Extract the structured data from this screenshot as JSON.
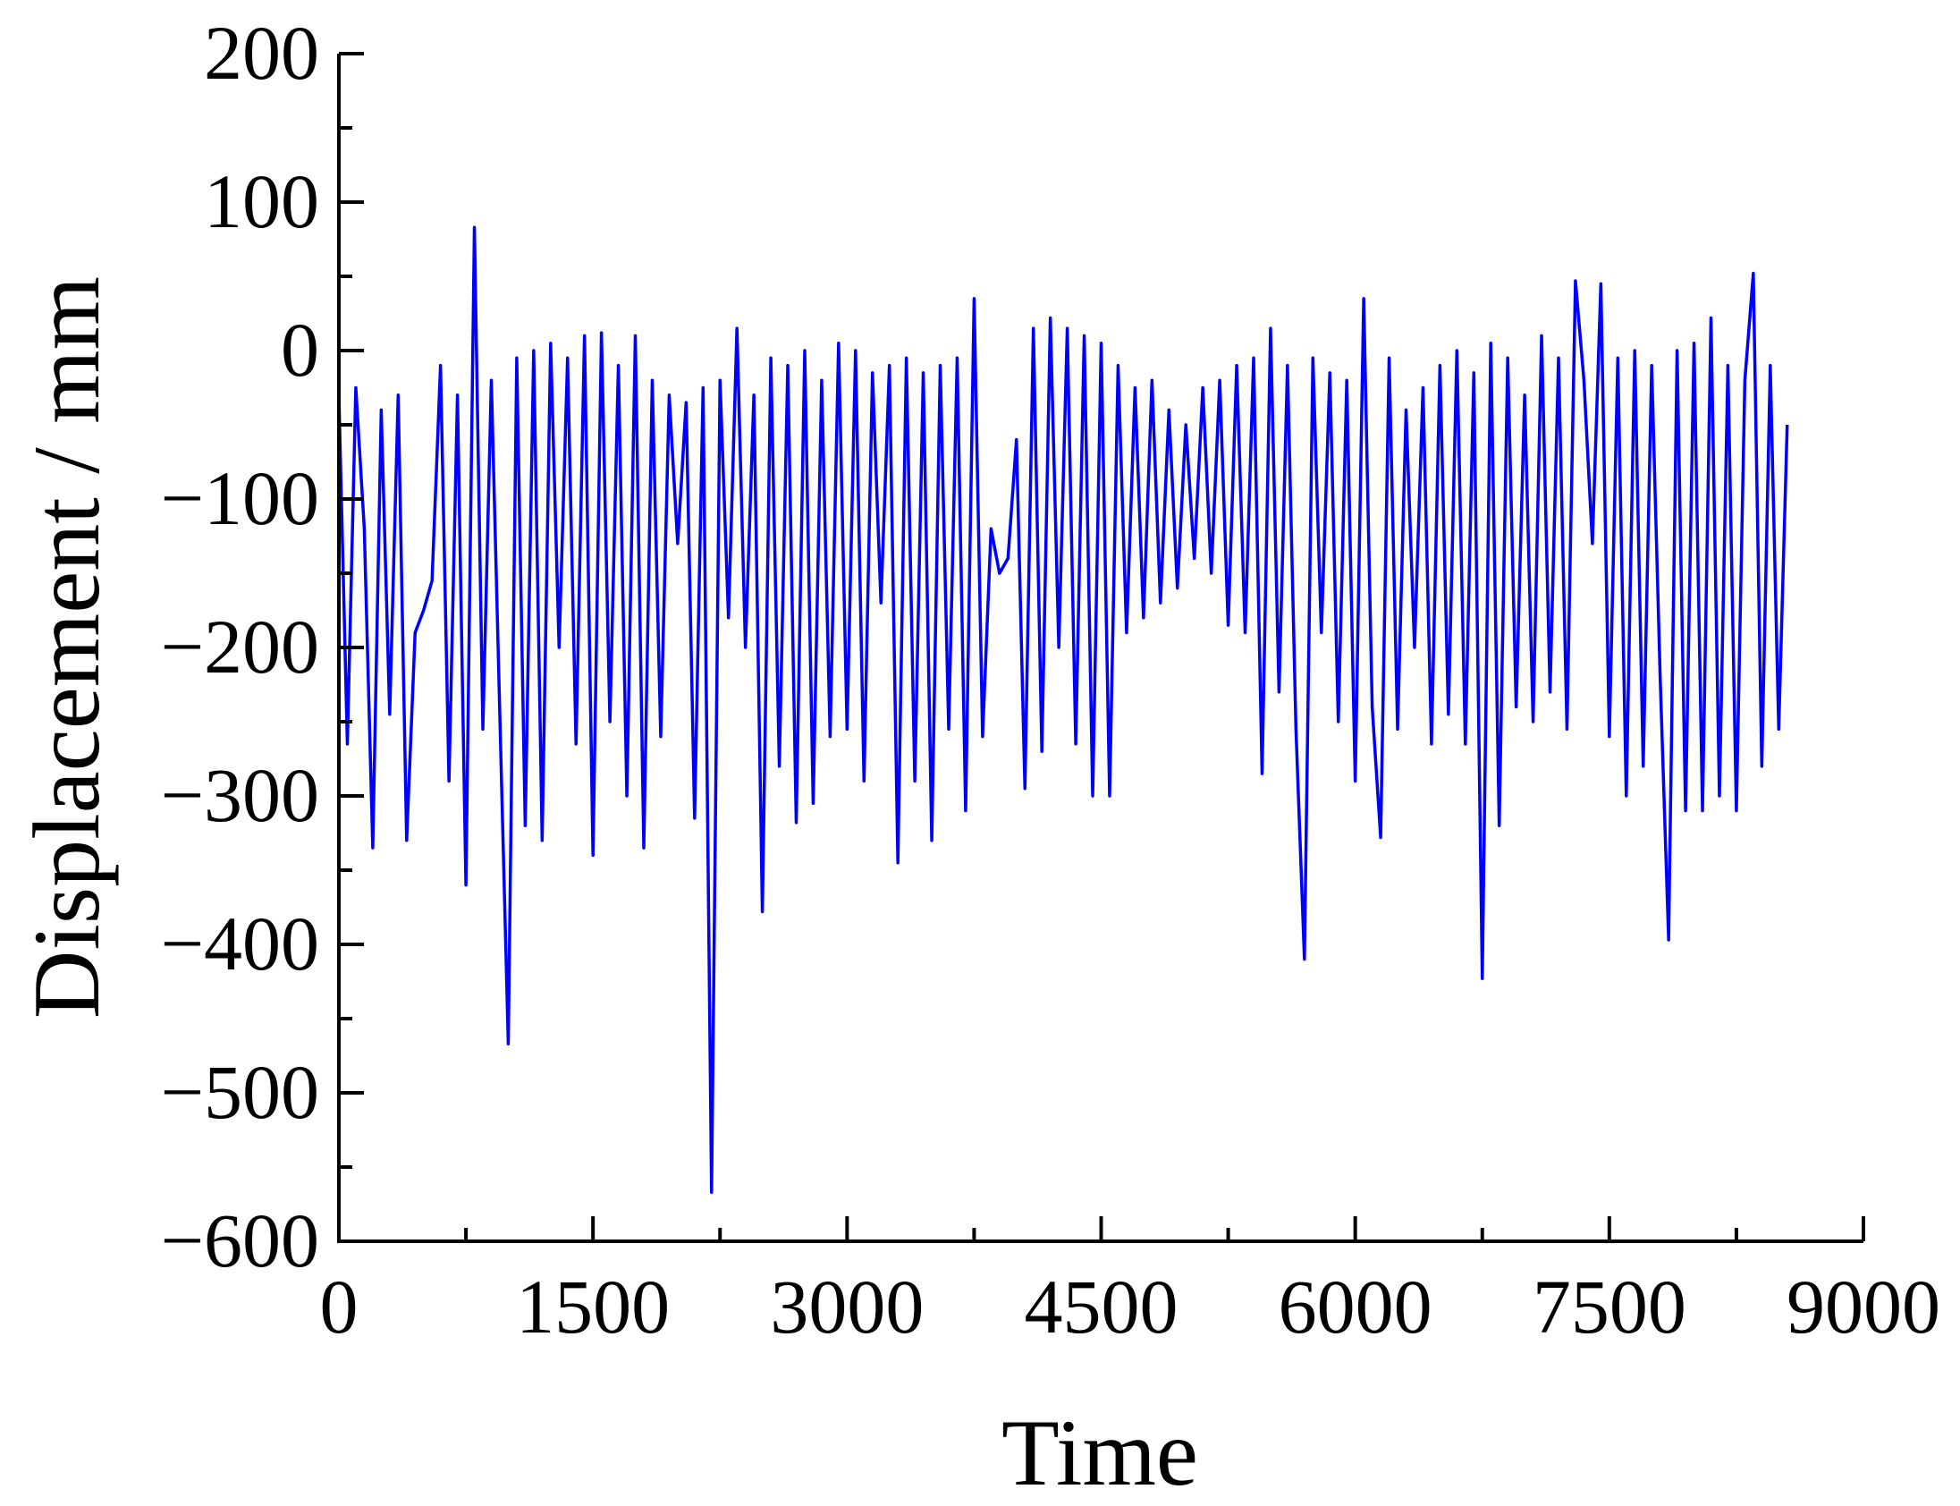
{
  "chart_data": {
    "type": "line",
    "xlabel": "Time",
    "ylabel": "Displacement / mm",
    "xlim": [
      0,
      9000
    ],
    "ylim": [
      -600,
      200
    ],
    "xticks": [
      0,
      1500,
      3000,
      4500,
      6000,
      7500,
      9000
    ],
    "yticks": [
      {
        "value": -600,
        "label": "−600"
      },
      {
        "value": -500,
        "label": "−500"
      },
      {
        "value": -400,
        "label": "−400"
      },
      {
        "value": -300,
        "label": "−300"
      },
      {
        "value": -200,
        "label": "−200"
      },
      {
        "value": -100,
        "label": "−100"
      },
      0,
      100,
      200
    ],
    "xminorticks": [
      750,
      2250,
      3750,
      5250,
      6750,
      8250
    ],
    "yminorticks": [
      -550,
      -450,
      -350,
      -250,
      -150,
      -50,
      50,
      150
    ],
    "series": [
      {
        "color": "#0000ff",
        "x": [
          0,
          50,
          100,
          150,
          200,
          250,
          300,
          350,
          400,
          450,
          500,
          550,
          600,
          650,
          700,
          750,
          800,
          850,
          900,
          950,
          1000,
          1050,
          1100,
          1150,
          1200,
          1250,
          1300,
          1350,
          1400,
          1450,
          1500,
          1550,
          1600,
          1650,
          1700,
          1750,
          1800,
          1850,
          1900,
          1950,
          2000,
          2050,
          2100,
          2150,
          2200,
          2250,
          2300,
          2350,
          2400,
          2450,
          2500,
          2550,
          2600,
          2650,
          2700,
          2750,
          2800,
          2850,
          2900,
          2950,
          3000,
          3050,
          3100,
          3150,
          3200,
          3250,
          3300,
          3350,
          3400,
          3450,
          3500,
          3550,
          3600,
          3650,
          3700,
          3750,
          3800,
          3850,
          3900,
          3950,
          4000,
          4050,
          4100,
          4150,
          4200,
          4250,
          4300,
          4350,
          4400,
          4450,
          4500,
          4550,
          4600,
          4650,
          4700,
          4750,
          4800,
          4850,
          4900,
          4950,
          5000,
          5050,
          5100,
          5150,
          5200,
          5250,
          5300,
          5350,
          5400,
          5450,
          5500,
          5550,
          5600,
          5650,
          5700,
          5750,
          5800,
          5850,
          5900,
          5950,
          6000,
          6050,
          6100,
          6150,
          6200,
          6250,
          6300,
          6350,
          6400,
          6450,
          6500,
          6550,
          6600,
          6650,
          6700,
          6750,
          6800,
          6850,
          6900,
          6950,
          7000,
          7050,
          7100,
          7150,
          7200,
          7250,
          7300,
          7350,
          7400,
          7450,
          7500,
          7550,
          7600,
          7650,
          7700,
          7750,
          7800,
          7850,
          7900,
          7950,
          8000,
          8050,
          8100,
          8150,
          8200,
          8250,
          8300,
          8350,
          8400,
          8450,
          8500,
          8550
        ],
        "values": [
          -30,
          -265,
          -25,
          -120,
          -335,
          -40,
          -245,
          -30,
          -330,
          -190,
          -175,
          -155,
          -10,
          -290,
          -30,
          -360,
          83,
          -255,
          -20,
          -245,
          -467,
          -5,
          -320,
          0,
          -330,
          5,
          -200,
          -5,
          -265,
          10,
          -340,
          12,
          -250,
          -10,
          -300,
          10,
          -335,
          -20,
          -260,
          -30,
          -130,
          -35,
          -315,
          -25,
          -567,
          -20,
          -180,
          15,
          -200,
          -30,
          -378,
          -5,
          -280,
          -10,
          -318,
          0,
          -305,
          -20,
          -260,
          5,
          -255,
          0,
          -290,
          -15,
          -170,
          -10,
          -345,
          -5,
          -290,
          -15,
          -330,
          -10,
          -255,
          -5,
          -310,
          35,
          -260,
          -120,
          -150,
          -140,
          -60,
          -295,
          15,
          -270,
          22,
          -200,
          15,
          -265,
          10,
          -300,
          5,
          -300,
          -10,
          -190,
          -25,
          -180,
          -20,
          -170,
          -40,
          -160,
          -50,
          -140,
          -25,
          -150,
          -20,
          -185,
          -10,
          -190,
          -5,
          -285,
          15,
          -230,
          -10,
          -255,
          -410,
          -5,
          -190,
          -15,
          -250,
          -20,
          -290,
          35,
          -240,
          -328,
          -5,
          -255,
          -40,
          -200,
          -25,
          -265,
          -10,
          -245,
          0,
          -265,
          -15,
          -423,
          5,
          -320,
          -5,
          -240,
          -30,
          -250,
          10,
          -230,
          -5,
          -255,
          47,
          -20,
          -130,
          45,
          -260,
          -5,
          -300,
          0,
          -280,
          -10,
          -220,
          -397,
          0,
          -310,
          5,
          -310,
          22,
          -300,
          -10,
          -310,
          -20,
          52,
          -280,
          -10,
          -255,
          -50
        ]
      }
    ]
  }
}
